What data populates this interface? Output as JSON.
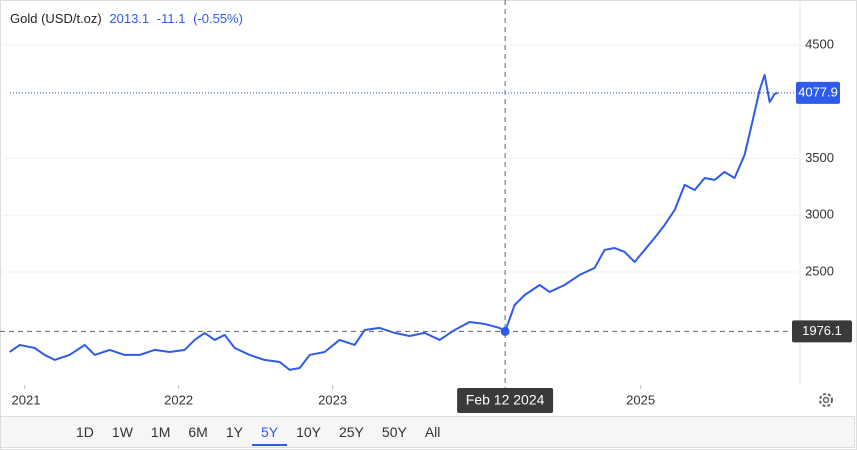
{
  "chart_data": {
    "type": "line",
    "header": {
      "name": "Gold (USD/t.oz)",
      "price": 2013.1,
      "change": -11.1,
      "change_pct": {
        "value": -0.55,
        "label": "(-0.55%)"
      }
    },
    "series": [
      {
        "name": "Gold",
        "color": "#2f5bea",
        "x": [
          2020.903,
          2020.968,
          2021.065,
          2021.13,
          2021.195,
          2021.292,
          2021.39,
          2021.455,
          2021.552,
          2021.649,
          2021.747,
          2021.844,
          2021.942,
          2022.039,
          2022.104,
          2022.169,
          2022.234,
          2022.299,
          2022.364,
          2022.461,
          2022.558,
          2022.656,
          2022.721,
          2022.786,
          2022.851,
          2022.948,
          2023.045,
          2023.143,
          2023.208,
          2023.305,
          2023.403,
          2023.5,
          2023.597,
          2023.695,
          2023.792,
          2023.89,
          2023.987,
          2024.084,
          2024.12,
          2024.182,
          2024.247,
          2024.344,
          2024.409,
          2024.506,
          2024.604,
          2024.701,
          2024.766,
          2024.831,
          2024.896,
          2024.961,
          2025.026,
          2025.091,
          2025.156,
          2025.221,
          2025.286,
          2025.351,
          2025.416,
          2025.481,
          2025.545,
          2025.61,
          2025.675,
          2025.721,
          2025.773,
          2025.805,
          2025.838,
          2025.87,
          2025.89
        ],
        "values": [
          1795,
          1857,
          1830,
          1769,
          1725,
          1769,
          1857,
          1769,
          1813,
          1769,
          1769,
          1813,
          1795,
          1813,
          1901,
          1963,
          1901,
          1945,
          1830,
          1769,
          1725,
          1707,
          1637,
          1654,
          1769,
          1795,
          1901,
          1857,
          1989,
          2007,
          1963,
          1936,
          1963,
          1901,
          1989,
          2059,
          2042,
          2007,
          1976.1,
          2209,
          2297,
          2385,
          2324,
          2385,
          2474,
          2535,
          2694,
          2711,
          2676,
          2588,
          2694,
          2800,
          2914,
          3046,
          3267,
          3222,
          3328,
          3311,
          3381,
          3328,
          3531,
          3795,
          4104,
          4236,
          3998,
          4068,
          4077.9
        ]
      }
    ],
    "xlim": [
      2020.84,
      2025.97
    ],
    "xticks": [
      2021,
      2022,
      2023,
      2025
    ],
    "ylim": [
      1504,
      4896
    ],
    "yticks": [
      2500,
      3000,
      3500,
      4500
    ],
    "crosshair": {
      "x": {
        "value": 2024.12,
        "label": "Feb 12 2024"
      },
      "y": 1976.1
    },
    "ranges": [
      "1D",
      "1W",
      "1M",
      "6M",
      "1Y",
      "5Y",
      "10Y",
      "25Y",
      "50Y",
      "All"
    ],
    "active_range": "5Y"
  }
}
